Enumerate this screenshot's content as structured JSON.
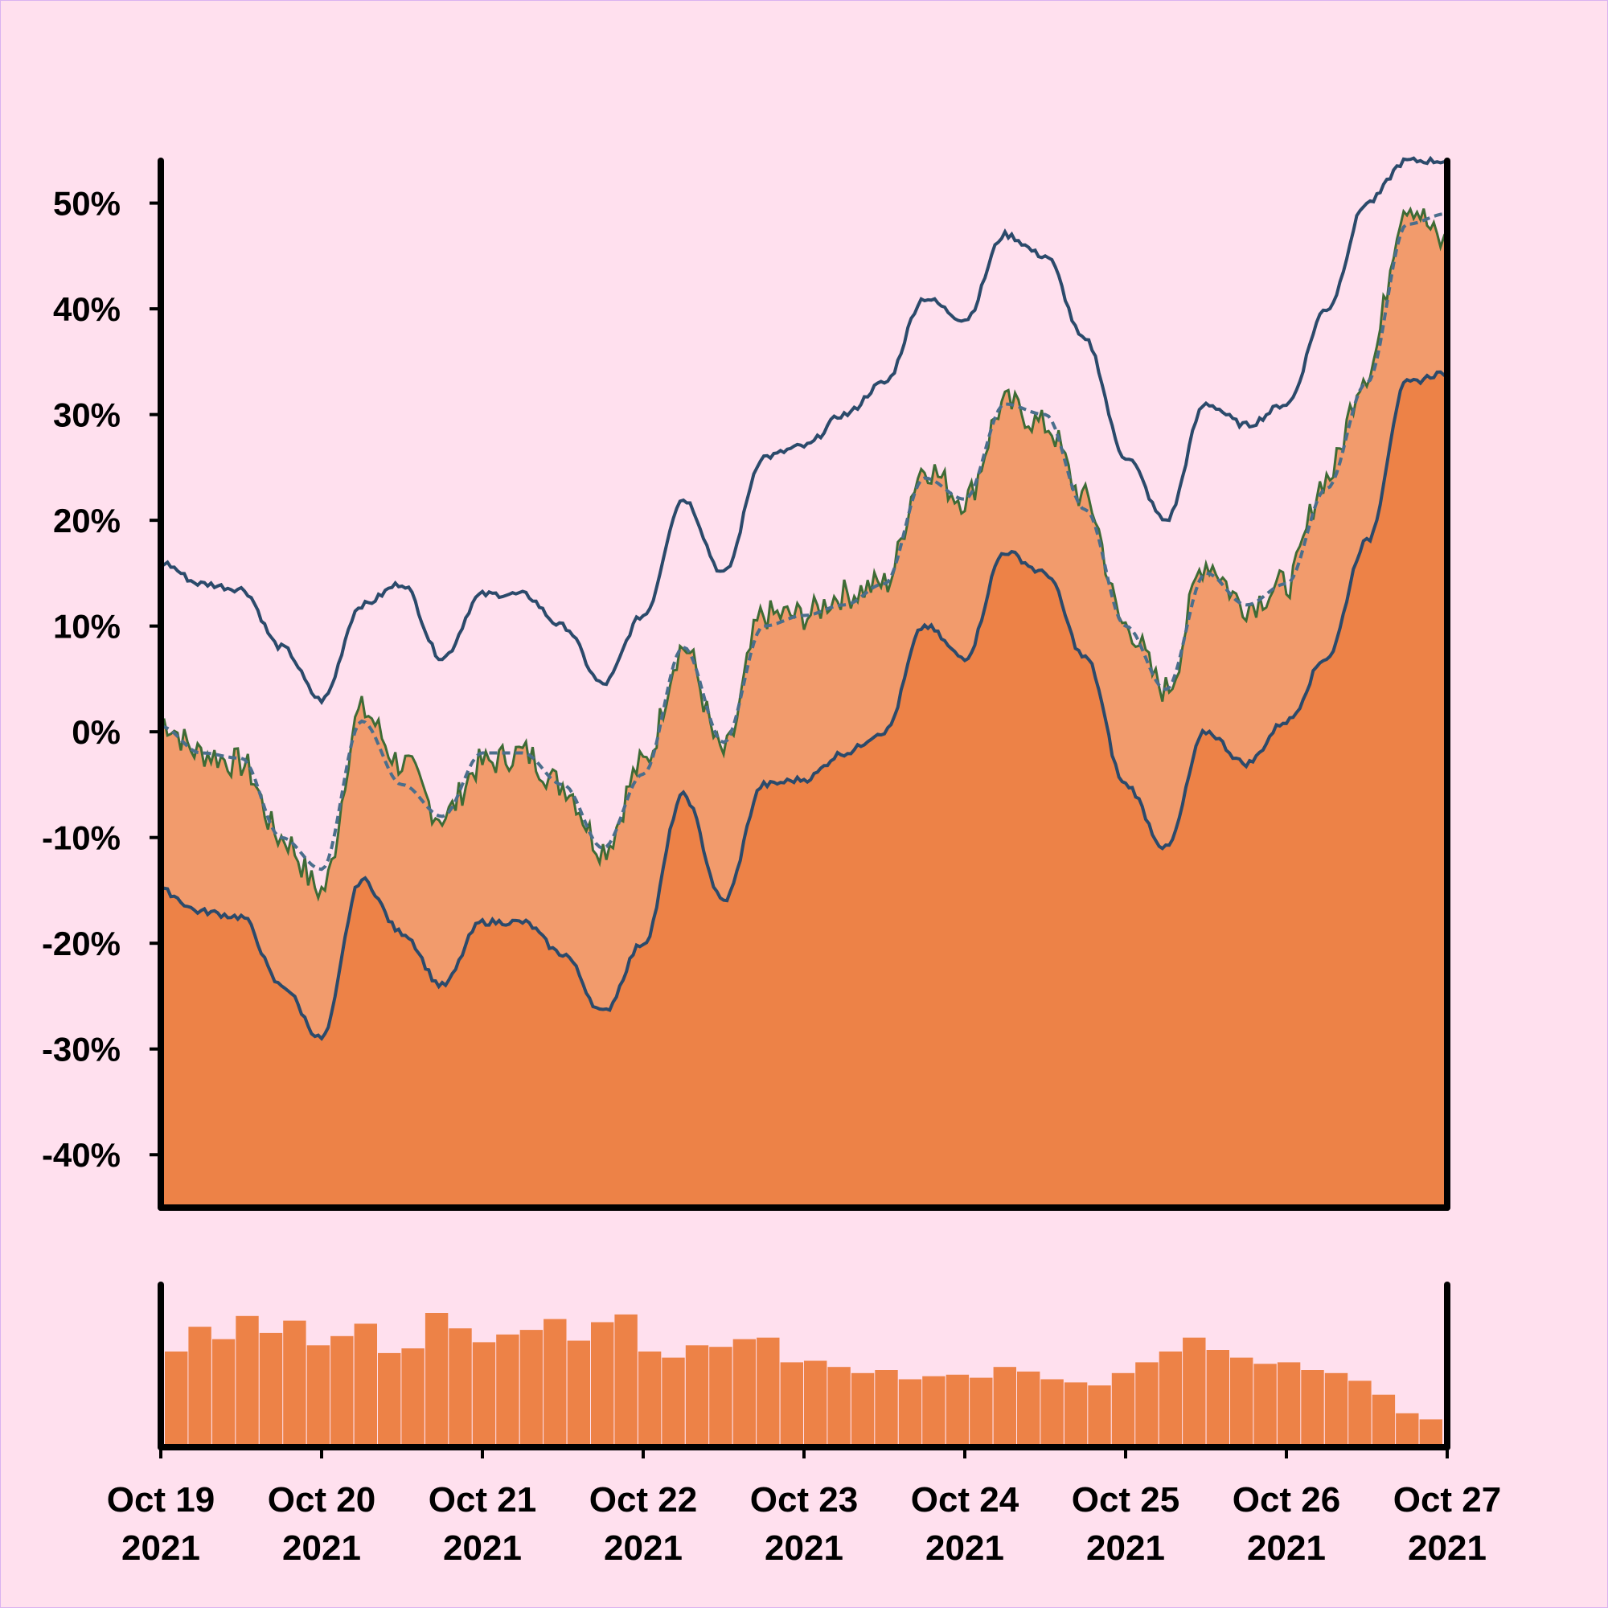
{
  "chart_data": [
    {
      "type": "area",
      "title": "",
      "xlabel": "",
      "ylabel": "",
      "ylim": [
        -45,
        54
      ],
      "yticks": [
        -40,
        -30,
        -20,
        -10,
        0,
        10,
        20,
        30,
        40,
        50
      ],
      "ytick_labels": [
        "-40%",
        "-30%",
        "-20%",
        "-10%",
        "0%",
        "10%",
        "20%",
        "30%",
        "40%",
        "50%"
      ],
      "x": [
        "Oct 19 00:00",
        "Oct 19 06:00",
        "Oct 19 12:00",
        "Oct 19 18:00",
        "Oct 20 00:00",
        "Oct 20 06:00",
        "Oct 20 12:00",
        "Oct 20 18:00",
        "Oct 21 00:00",
        "Oct 21 06:00",
        "Oct 21 12:00",
        "Oct 21 18:00",
        "Oct 22 00:00",
        "Oct 22 06:00",
        "Oct 22 12:00",
        "Oct 22 18:00",
        "Oct 23 00:00",
        "Oct 23 06:00",
        "Oct 23 12:00",
        "Oct 23 18:00",
        "Oct 24 00:00",
        "Oct 24 06:00",
        "Oct 24 12:00",
        "Oct 24 18:00",
        "Oct 25 00:00",
        "Oct 25 06:00",
        "Oct 25 12:00",
        "Oct 25 18:00",
        "Oct 26 00:00",
        "Oct 26 06:00",
        "Oct 26 12:00",
        "Oct 26 18:00",
        "Oct 27 00:00"
      ],
      "series": [
        {
          "role": "upper band",
          "values": [
            16,
            14,
            13.5,
            8,
            3,
            12,
            14,
            7,
            13,
            13,
            10,
            4.5,
            11,
            22,
            15,
            26,
            27,
            30,
            33,
            41,
            39,
            47,
            45,
            37,
            26,
            20,
            31,
            29,
            31,
            40,
            50,
            54,
            54
          ]
        },
        {
          "role": "price",
          "values": [
            1,
            -2,
            -3,
            -10,
            -15,
            2,
            -3,
            -8,
            -3,
            -2,
            -5,
            -11,
            -3,
            8,
            -2,
            11,
            11,
            13,
            14,
            25,
            22,
            31,
            29,
            22,
            10,
            4,
            16,
            12,
            14,
            24,
            34,
            50,
            46
          ]
        },
        {
          "role": "moving average",
          "values": [
            0.5,
            -2,
            -2.5,
            -10,
            -13,
            1,
            -5,
            -8,
            -2,
            -2,
            -5,
            -11,
            -4,
            8,
            -1,
            10,
            11,
            12,
            14,
            24,
            22,
            31,
            30,
            21,
            10,
            4,
            15,
            12,
            14,
            23,
            33,
            48,
            49
          ]
        },
        {
          "role": "lower band",
          "values": [
            -15,
            -17,
            -17.5,
            -24,
            -29,
            -14,
            -19,
            -24,
            -18,
            -18,
            -21,
            -26.5,
            -20,
            -6,
            -16,
            -5,
            -4.5,
            -2,
            0,
            10,
            7,
            17,
            15,
            7,
            -5,
            -11,
            0,
            -3,
            1,
            7,
            18,
            33,
            34
          ]
        }
      ],
      "colors": {
        "upper_band": "#2b4a6b",
        "price_line": "#3e6b35",
        "moving_average": "#4a6e8c",
        "lower_band": "#2b4a6b",
        "fill_outer": "#ed8247",
        "fill_inner": "#f29b6c",
        "background": "#ffe0ee"
      },
      "grid": false,
      "legend": "none"
    },
    {
      "type": "bar",
      "title": "",
      "role": "volume",
      "note": "relative bar heights, no printed values",
      "values": [
        0.62,
        0.78,
        0.7,
        0.85,
        0.74,
        0.82,
        0.66,
        0.72,
        0.8,
        0.61,
        0.64,
        0.87,
        0.77,
        0.68,
        0.73,
        0.76,
        0.83,
        0.69,
        0.81,
        0.86,
        0.62,
        0.58,
        0.66,
        0.65,
        0.7,
        0.71,
        0.55,
        0.56,
        0.52,
        0.48,
        0.5,
        0.44,
        0.46,
        0.47,
        0.45,
        0.52,
        0.49,
        0.44,
        0.42,
        0.4,
        0.48,
        0.55,
        0.62,
        0.71,
        0.63,
        0.58,
        0.54,
        0.55,
        0.5,
        0.48,
        0.43,
        0.34,
        0.22,
        0.18
      ],
      "x_tick_labels": [
        [
          "Oct 19",
          "2021"
        ],
        [
          "Oct 20",
          "2021"
        ],
        [
          "Oct 21",
          "2021"
        ],
        [
          "Oct 22",
          "2021"
        ],
        [
          "Oct 23",
          "2021"
        ],
        [
          "Oct 24",
          "2021"
        ],
        [
          "Oct 25",
          "2021"
        ],
        [
          "Oct 26",
          "2021"
        ],
        [
          "Oct 27",
          "2021"
        ]
      ]
    }
  ]
}
